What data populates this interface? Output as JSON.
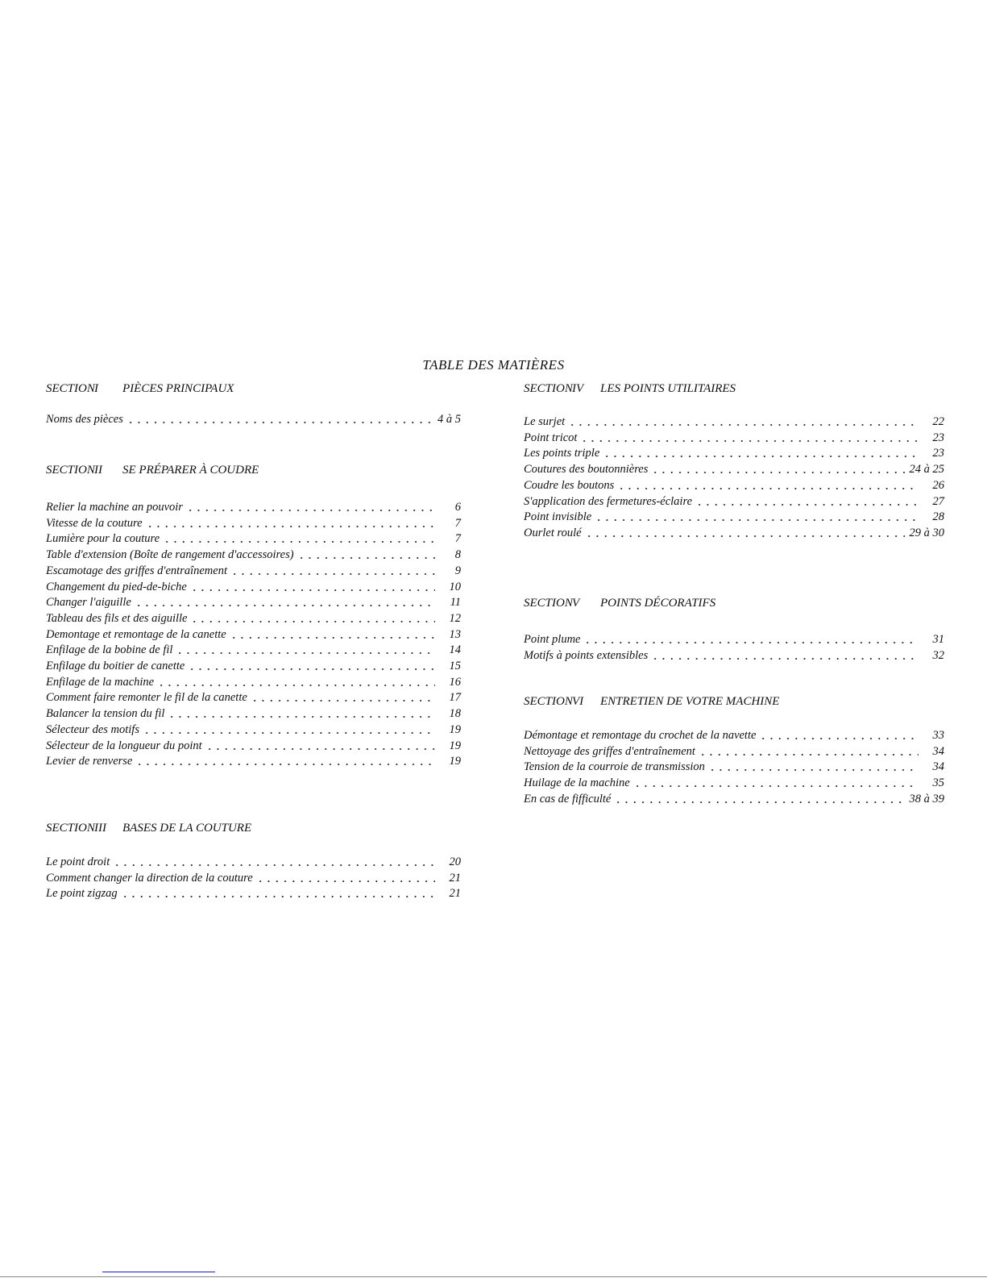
{
  "title": "TABLE DES MATIÈRES",
  "columns": [
    {
      "sections": [
        {
          "section": "SECTION",
          "roman": "I",
          "name": "PIÈCES PRINCIPAUX",
          "entries": [
            {
              "label": "Noms des pièces",
              "page": "4 à 5"
            }
          ]
        },
        {
          "section": "SECTION",
          "roman": "II",
          "name": "SE PRÉPARER À COUDRE",
          "entries": [
            {
              "label": "Relier la machine an pouvoir",
              "page": "6"
            },
            {
              "label": "Vitesse de la couture",
              "page": "7"
            },
            {
              "label": "Lumière pour la couture",
              "page": "7"
            },
            {
              "label": "Table d'extension (Boîte de rangement d'accessoires)",
              "page": "8"
            },
            {
              "label": "Escamotage des griffes d'entraînement",
              "page": "9"
            },
            {
              "label": "Changement du pied-de-biche",
              "page": "10"
            },
            {
              "label": "Changer l'aiguille",
              "page": "11"
            },
            {
              "label": "Tableau des fils et des aiguille",
              "page": "12"
            },
            {
              "label": "Demontage et remontage de la canette",
              "page": "13"
            },
            {
              "label": "Enfilage de la bobine de fil",
              "page": "14"
            },
            {
              "label": "Enfilage du boitier de canette",
              "page": "15"
            },
            {
              "label": "Enfilage de la machine",
              "page": "16"
            },
            {
              "label": "Comment faire remonter le fil de la canette",
              "page": "17"
            },
            {
              "label": "Balancer la tension du fil",
              "page": "18"
            },
            {
              "label": "Sélecteur des motifs",
              "page": "19"
            },
            {
              "label": "Sélecteur de la longueur du point",
              "page": "19"
            },
            {
              "label": "Levier de renverse",
              "page": "19"
            }
          ]
        },
        {
          "section": "SECTION",
          "roman": "III",
          "name": "BASES DE LA COUTURE",
          "entries": [
            {
              "label": "Le point droit",
              "page": "20"
            },
            {
              "label": "Comment changer la direction de la couture",
              "page": "21"
            },
            {
              "label": "Le point zigzag",
              "page": "21"
            }
          ]
        }
      ]
    },
    {
      "sections": [
        {
          "section": "SECTION",
          "roman": "IV",
          "name": "LES POINTS UTILITAIRES",
          "entries": [
            {
              "label": "Le surjet",
              "page": "22"
            },
            {
              "label": "Point tricot",
              "page": "23"
            },
            {
              "label": "Les points triple",
              "page": "23"
            },
            {
              "label": "Coutures des boutonnières",
              "page": "24 à 25"
            },
            {
              "label": "Coudre les boutons",
              "page": "26"
            },
            {
              "label": "S'application des fermetures-éclaire",
              "page": "27"
            },
            {
              "label": "Point invisible",
              "page": "28"
            },
            {
              "label": "Ourlet roulé",
              "page": "29 à 30"
            }
          ]
        },
        {
          "section": "SECTION",
          "roman": "V",
          "name": "POINTS DÉCORATIFS",
          "entries": [
            {
              "label": "Point plume",
              "page": "31"
            },
            {
              "label": "Motifs à points extensibles",
              "page": "32"
            }
          ]
        },
        {
          "section": "SECTION",
          "roman": "VI",
          "name": "ENTRETIEN DE VOTRE MACHINE",
          "entries": [
            {
              "label": "Démontage et remontage du crochet de la navette",
              "page": "33"
            },
            {
              "label": "Nettoyage des griffes d'entraînement",
              "page": "34"
            },
            {
              "label": "Tension de la courroie de transmission",
              "page": "34"
            },
            {
              "label": "Huilage de la machine",
              "page": "35"
            },
            {
              "label": "En cas de fifficulté",
              "page": "38 à 39"
            }
          ]
        }
      ]
    }
  ]
}
